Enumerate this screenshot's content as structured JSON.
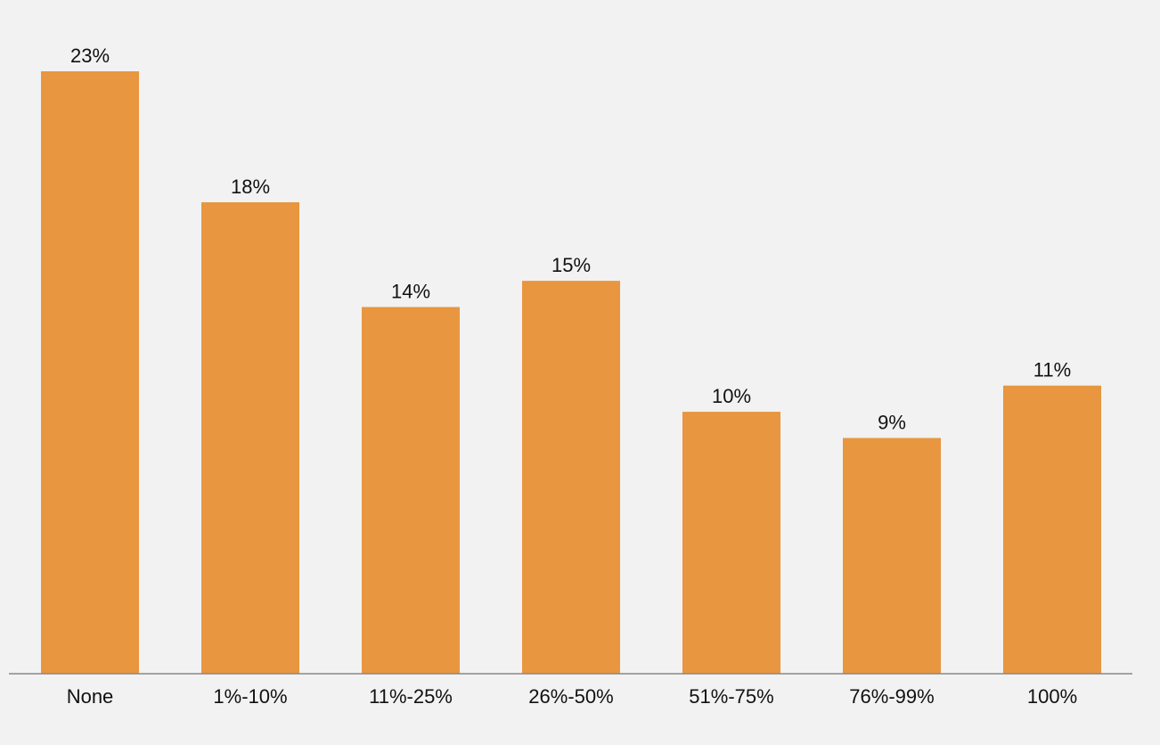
{
  "chart_data": {
    "type": "bar",
    "categories": [
      "None",
      "1%-10%",
      "11%-25%",
      "26%-50%",
      "51%-75%",
      "76%-99%",
      "100%"
    ],
    "values": [
      23,
      18,
      14,
      15,
      10,
      9,
      11
    ],
    "value_labels": [
      "23%",
      "18%",
      "14%",
      "15%",
      "10%",
      "9%",
      "11%"
    ],
    "color": "#e8963f"
  }
}
